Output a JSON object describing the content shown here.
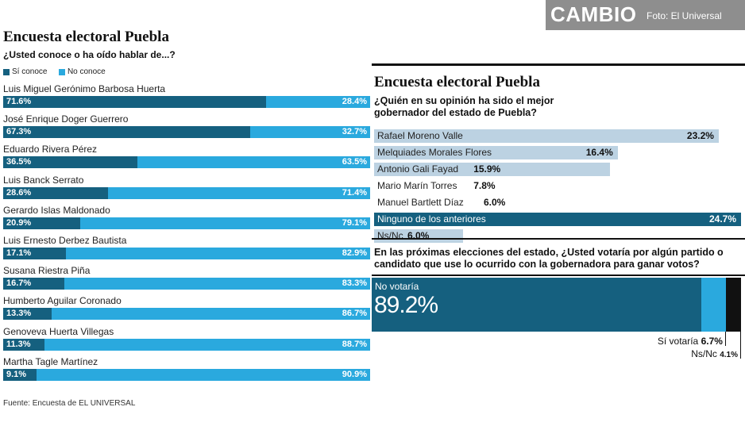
{
  "header": {
    "logo_text": "CAMBIO",
    "credit": "Foto: El Universal",
    "background": "#8e8e8e"
  },
  "left_panel": {
    "title": "Encuesta electoral Puebla",
    "question": "¿Usted conoce o ha oído hablar de...?",
    "legend": [
      {
        "label": "Sí conoce",
        "color": "#15607f"
      },
      {
        "label": "No conoce",
        "color": "#2aa9de"
      }
    ],
    "source": "Fuente: Encuesta de EL UNIVERSAL"
  },
  "right_panel": {
    "title": "Encuesta electoral Puebla",
    "question": "¿Quién en su opinión ha sido el mejor gobernador del estado de Puebla?",
    "question2": "En las próximas elecciones del estado, ¿Usted votaría por algún partido o candidato que use lo ocurrido con la gobernadora para ganar votos?"
  },
  "chart_data": [
    {
      "type": "bar",
      "orientation": "horizontal",
      "stacked": true,
      "title": "Encuesta electoral Puebla",
      "subtitle": "¿Usted conoce o ha oído hablar de...?",
      "categories": [
        "Luis Miguel Gerónimo Barbosa Huerta",
        "José Enrique Doger Guerrero",
        "Eduardo Rivera Pérez",
        "Luis Banck Serrato",
        "Gerardo Islas Maldonado",
        "Luis Ernesto Derbez Bautista",
        "Susana Riestra Piña",
        "Humberto Aguilar Coronado",
        "Genoveva Huerta Villegas",
        "Martha Tagle Martínez"
      ],
      "series": [
        {
          "name": "Sí conoce",
          "color": "#15607f",
          "values": [
            71.6,
            67.3,
            36.5,
            28.6,
            20.9,
            17.1,
            16.7,
            13.3,
            11.3,
            9.1
          ],
          "labels": [
            "71.6%",
            "67.3%",
            "36.5%",
            "28.6%",
            "20.9%",
            "17.1%",
            "16.7%",
            "13.3%",
            "11.3%",
            "9.1%"
          ]
        },
        {
          "name": "No conoce",
          "color": "#2aa9de",
          "values": [
            28.4,
            32.7,
            63.5,
            71.4,
            79.1,
            82.9,
            83.3,
            86.7,
            88.7,
            90.9
          ],
          "labels": [
            "28.4%",
            "32.7%",
            "63.5%",
            "71.4%",
            "79.1%",
            "82.9%",
            "83.3%",
            "86.7%",
            "88.7%",
            "90.9%"
          ]
        }
      ],
      "legend": "top-left"
    },
    {
      "type": "bar",
      "orientation": "horizontal",
      "title": "Encuesta electoral Puebla",
      "subtitle": "¿Quién en su opinión ha sido el mejor gobernador del estado de Puebla?",
      "categories": [
        "Rafael Moreno Valle",
        "Melquiades Morales Flores",
        "Antonio Gali Fayad",
        "Mario Marín Torres",
        "Manuel Bartlett Díaz",
        "Ninguno de los anteriores",
        "Ns/Nc"
      ],
      "values": [
        23.2,
        16.4,
        15.9,
        7.8,
        6.0,
        24.7,
        6.0
      ],
      "labels": [
        "23.2%",
        "16.4%",
        "15.9%",
        "7.8%",
        "6.0%",
        "24.7%",
        "6.0%"
      ],
      "colors": [
        "#bcd2e2",
        "#bcd2e2",
        "#bcd2e2",
        "#ffffff",
        "#ffffff",
        "#15607f",
        "#bcd2e2"
      ]
    },
    {
      "type": "bar",
      "orientation": "horizontal",
      "stacked": true,
      "subtitle": "En las próximas elecciones del estado, ¿Usted votaría por algún partido o candidato que use lo ocurrido con la gobernadora para ganar votos?",
      "categories": [
        "No votaría",
        "Sí votaría",
        "Ns/Nc"
      ],
      "values": [
        89.2,
        6.7,
        4.1
      ],
      "labels": [
        "89.2%",
        "6.7%",
        "4.1%"
      ],
      "colors": [
        "#15607f",
        "#2aa9de",
        "#111111"
      ]
    }
  ]
}
